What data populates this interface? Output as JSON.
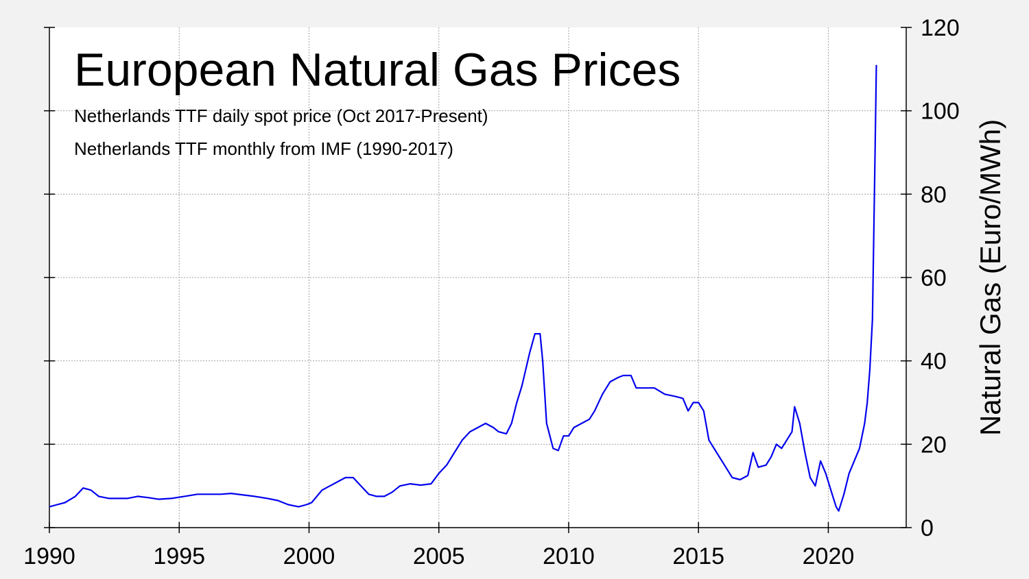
{
  "chart_data": {
    "type": "line",
    "title": "European Natural Gas Prices",
    "subtitles": [
      "Netherlands TTF daily spot price (Oct 2017-Present)",
      "Netherlands TTF monthly from IMF (1990-2017)"
    ],
    "ylabel": "Natural Gas (Euro/MWh)",
    "xlim": [
      1990,
      2023
    ],
    "ylim": [
      0,
      120
    ],
    "x_ticks": [
      1990,
      1995,
      2000,
      2005,
      2010,
      2015,
      2020
    ],
    "y_ticks": [
      0,
      20,
      40,
      60,
      80,
      100,
      120
    ],
    "y_axis_side": "right",
    "grid": true,
    "line_color": "#0000ee",
    "series": [
      {
        "x": [
          1990.0,
          1990.3,
          1990.6,
          1991.0,
          1991.3,
          1991.6,
          1991.9,
          1992.3,
          1993.0,
          1993.4,
          1993.8,
          1994.2,
          1994.7,
          1995.2,
          1995.7,
          1996.1,
          1996.6,
          1997.0,
          1997.5,
          1997.9,
          1998.4,
          1998.8,
          1999.2,
          1999.6,
          1999.9,
          2000.1,
          2000.5,
          2000.8,
          2001.1,
          2001.4,
          2001.7,
          2002.0,
          2002.3,
          2002.6,
          2002.9,
          2003.2,
          2003.5,
          2003.9,
          2004.3,
          2004.7,
          2005.0,
          2005.3,
          2005.6,
          2005.9,
          2006.2,
          2006.5,
          2006.8,
          2007.1,
          2007.3,
          2007.6,
          2007.8,
          2008.0,
          2008.2,
          2008.5,
          2008.7,
          2008.9,
          2009.0,
          2009.15,
          2009.4,
          2009.6,
          2009.8,
          2010.0,
          2010.2,
          2010.5,
          2010.8,
          2011.0,
          2011.3,
          2011.6,
          2011.9,
          2012.1,
          2012.4,
          2012.6,
          2012.9,
          2013.3,
          2013.7,
          2014.1,
          2014.4,
          2014.6,
          2014.8,
          2015.0,
          2015.2,
          2015.4,
          2015.7,
          2016.0,
          2016.3,
          2016.6,
          2016.9,
          2017.1,
          2017.3,
          2017.6,
          2017.8,
          2018.0,
          2018.2,
          2018.4,
          2018.6,
          2018.7,
          2018.9,
          2019.1,
          2019.3,
          2019.5,
          2019.7,
          2019.9,
          2020.1,
          2020.3,
          2020.4,
          2020.6,
          2020.8,
          2021.0,
          2021.2,
          2021.4,
          2021.5,
          2021.6,
          2021.7,
          2021.75,
          2021.8,
          2021.85
        ],
        "y": [
          5,
          5.5,
          6,
          7.5,
          9.5,
          9,
          7.5,
          7,
          7,
          7.5,
          7.2,
          6.8,
          7,
          7.5,
          8,
          8,
          8,
          8.2,
          7.8,
          7.5,
          7,
          6.5,
          5.5,
          5,
          5.5,
          6,
          9,
          10,
          11,
          12,
          12,
          10,
          8,
          7.5,
          7.5,
          8.5,
          10,
          10.5,
          10.2,
          10.5,
          13,
          15,
          18,
          21,
          23,
          24,
          25,
          24,
          23,
          22.5,
          25,
          30,
          34,
          42,
          46.5,
          46.5,
          40,
          25,
          19,
          18.5,
          22,
          22,
          24,
          25,
          26,
          28,
          32,
          35,
          36,
          36.5,
          36.5,
          33.5,
          33.5,
          33.5,
          32,
          31.5,
          31,
          28,
          30,
          30,
          28,
          21,
          18,
          15,
          12,
          11.5,
          12.5,
          18,
          14.5,
          15,
          17,
          20,
          19,
          21,
          23,
          29,
          25,
          18,
          12,
          10,
          16,
          13,
          9,
          5,
          4,
          8,
          13,
          16,
          19,
          25,
          30,
          38,
          50,
          70,
          90,
          111
        ]
      }
    ]
  }
}
